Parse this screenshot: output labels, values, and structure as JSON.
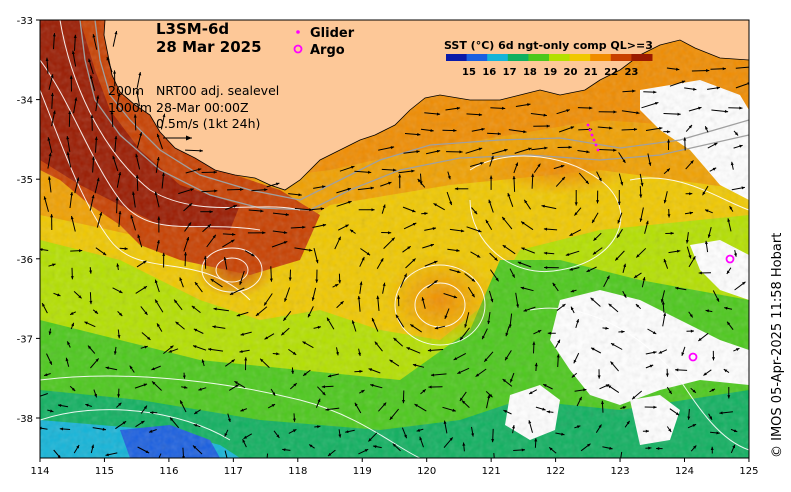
{
  "map": {
    "product": "L3SM-6d",
    "date": "28 Mar 2025",
    "lon_ticks": [
      "114",
      "115",
      "116",
      "117",
      "118",
      "119",
      "120",
      "121",
      "122",
      "123",
      "124",
      "125"
    ],
    "lat_ticks": [
      "-33",
      "-34",
      "-35",
      "-36",
      "-37",
      "-38"
    ],
    "land_color": "#fdc898"
  },
  "legend": {
    "glider_label": "Glider",
    "argo_label": "Argo",
    "glider_color": "#ff00ff",
    "argo_color": "#ff00ff"
  },
  "notes": {
    "isobath_200": "200m",
    "isobath_1000": "1000m",
    "sealevel": "NRT00 adj. sealevel",
    "time": "28-Mar 00:00Z",
    "current_scale": "0.5m/s (1kt 24h)"
  },
  "colorbar": {
    "title": "SST (°C) 6d ngt-only comp QL>=3",
    "ticks": [
      "15",
      "16",
      "17",
      "18",
      "19",
      "20",
      "21",
      "22",
      "23"
    ],
    "colors": [
      "#0a1aa8",
      "#1a5fe0",
      "#14b4d8",
      "#10b060",
      "#4cc81c",
      "#b4e000",
      "#f0c800",
      "#f08c00",
      "#c84000",
      "#9a1a00"
    ]
  },
  "credit": "© IMOS 05-Apr-2025 11:58 Hobart"
}
